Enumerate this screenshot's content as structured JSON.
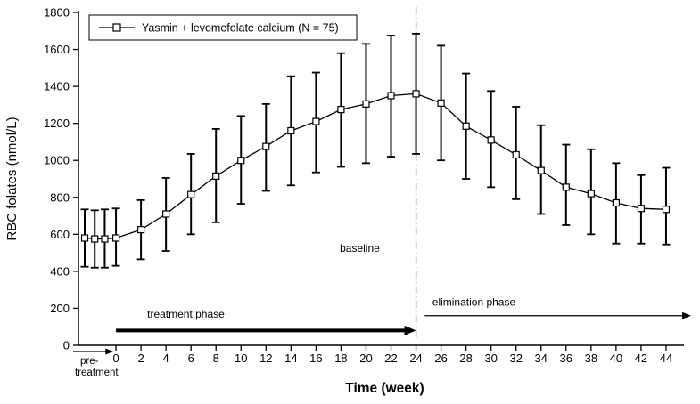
{
  "chart_data": {
    "type": "line",
    "title": "",
    "xlabel": "Time (week)",
    "ylabel": "RBC folates (nmol/L)",
    "xlim": [
      -3,
      46
    ],
    "ylim": [
      0,
      1800
    ],
    "grid": false,
    "yticks": [
      0,
      200,
      400,
      600,
      800,
      1000,
      1200,
      1400,
      1600,
      1800
    ],
    "xticks": [
      0,
      2,
      4,
      6,
      8,
      10,
      12,
      14,
      16,
      18,
      20,
      22,
      24,
      26,
      28,
      30,
      32,
      34,
      36,
      38,
      40,
      42,
      44
    ],
    "legend": {
      "position": "top-left",
      "entries": [
        {
          "label": "Yasmin + levomefolate calcium (N = 75)",
          "marker": "open-square",
          "color": "#000000"
        }
      ]
    },
    "series": [
      {
        "name": "Yasmin + levomefolate calcium (N = 75)",
        "marker": "open-square",
        "color": "#000000",
        "error_bars": true,
        "points": [
          {
            "x": -2.5,
            "y": 580,
            "lo": 425,
            "hi": 735,
            "phase": "pre-treatment"
          },
          {
            "x": -1.7,
            "y": 575,
            "lo": 420,
            "hi": 730,
            "phase": "pre-treatment"
          },
          {
            "x": -0.9,
            "y": 575,
            "lo": 420,
            "hi": 735,
            "phase": "pre-treatment"
          },
          {
            "x": 0,
            "y": 580,
            "lo": 430,
            "hi": 740
          },
          {
            "x": 2,
            "y": 625,
            "lo": 465,
            "hi": 785
          },
          {
            "x": 4,
            "y": 710,
            "lo": 510,
            "hi": 905
          },
          {
            "x": 6,
            "y": 815,
            "lo": 600,
            "hi": 1035
          },
          {
            "x": 8,
            "y": 915,
            "lo": 665,
            "hi": 1170
          },
          {
            "x": 10,
            "y": 1000,
            "lo": 765,
            "hi": 1240
          },
          {
            "x": 12,
            "y": 1075,
            "lo": 835,
            "hi": 1305
          },
          {
            "x": 14,
            "y": 1160,
            "lo": 865,
            "hi": 1455
          },
          {
            "x": 16,
            "y": 1210,
            "lo": 935,
            "hi": 1475
          },
          {
            "x": 18,
            "y": 1275,
            "lo": 965,
            "hi": 1580
          },
          {
            "x": 20,
            "y": 1305,
            "lo": 985,
            "hi": 1630
          },
          {
            "x": 22,
            "y": 1350,
            "lo": 1020,
            "hi": 1675
          },
          {
            "x": 24,
            "y": 1360,
            "lo": 1035,
            "hi": 1685
          },
          {
            "x": 26,
            "y": 1310,
            "lo": 1000,
            "hi": 1620
          },
          {
            "x": 28,
            "y": 1185,
            "lo": 900,
            "hi": 1470
          },
          {
            "x": 30,
            "y": 1110,
            "lo": 855,
            "hi": 1375
          },
          {
            "x": 32,
            "y": 1030,
            "lo": 790,
            "hi": 1290
          },
          {
            "x": 34,
            "y": 945,
            "lo": 710,
            "hi": 1190
          },
          {
            "x": 36,
            "y": 855,
            "lo": 650,
            "hi": 1085
          },
          {
            "x": 38,
            "y": 820,
            "lo": 600,
            "hi": 1060
          },
          {
            "x": 40,
            "y": 770,
            "lo": 550,
            "hi": 985
          },
          {
            "x": 42,
            "y": 740,
            "lo": 550,
            "hi": 920
          },
          {
            "x": 44,
            "y": 735,
            "lo": 545,
            "hi": 960
          }
        ]
      }
    ],
    "vline": {
      "x": 24,
      "style": "dash-dot"
    },
    "annotations": {
      "baseline": {
        "text": "baseline",
        "x": 19.5,
        "y": 505
      },
      "treatment_phase": {
        "text": "treatment phase",
        "text_x": 2.5,
        "text_y": 150,
        "arrow_x1": 0,
        "arrow_x2": 24,
        "arrow_y": 80,
        "style": "thick"
      },
      "elimination_phase": {
        "text": "elimination phase",
        "text_x": 25.3,
        "text_y": 215,
        "arrow_x1": 24.7,
        "arrow_x2": 46,
        "arrow_y": 160,
        "style": "thin"
      },
      "pre_treatment": {
        "lines": [
          "pre-",
          "treatment"
        ]
      }
    }
  }
}
